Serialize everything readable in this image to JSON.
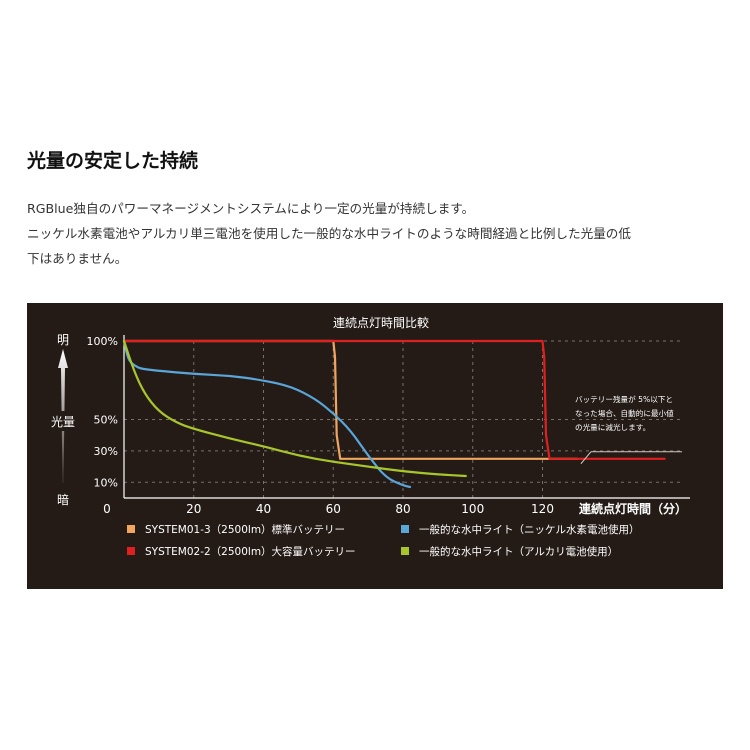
{
  "heading": "光量の安定した持続",
  "description": [
    "RGBlue独自のパワーマネージメントシステムにより一定の光量が持続します。",
    "ニッケル水素電池やアルカリ単三電池を使用した一般的な水中ライトのような時間経過と比例した光量の低",
    "下はありません。"
  ],
  "chart_data": {
    "type": "line",
    "title": "連続点灯時間比較",
    "xlabel": "連続点灯時間（分）",
    "ylabel": "光量",
    "y_top_label": "明",
    "y_bottom_label": "暗",
    "xlim": [
      0,
      160
    ],
    "ylim": [
      0,
      100
    ],
    "x_ticks": [
      0,
      20,
      40,
      60,
      80,
      100,
      120
    ],
    "y_ticks": [
      {
        "value": 100,
        "label": "100%"
      },
      {
        "value": 50,
        "label": "50%"
      },
      {
        "value": 30,
        "label": "30%"
      },
      {
        "value": 10,
        "label": "10%"
      }
    ],
    "grid": true,
    "legend_position": "bottom",
    "annotation": {
      "lines": [
        "バッテリー残量が 5%以下と",
        "なった場合、自動的に最小値",
        "の光量に減光します。"
      ],
      "x": 127,
      "y": 25
    },
    "series": [
      {
        "name": "SYSTEM01-3（2500lm）標準バッテリー",
        "color": "#f0a560",
        "x": [
          0,
          60,
          60.5,
          61,
          62,
          130
        ],
        "y": [
          100,
          100,
          90,
          40,
          25,
          25
        ]
      },
      {
        "name": "SYSTEM02-2（2500lm）大容量バッテリー",
        "color": "#e02020",
        "x": [
          0,
          120,
          120.5,
          121,
          122,
          155
        ],
        "y": [
          100,
          100,
          90,
          40,
          25,
          25
        ]
      },
      {
        "name": "一般的な水中ライト（ニッケル水素電池使用）",
        "color": "#5aa6d8",
        "x": [
          0,
          1,
          2,
          4,
          6,
          10,
          20,
          30,
          40,
          48,
          55,
          60,
          65,
          70,
          75,
          80,
          82
        ],
        "y": [
          100,
          90,
          86,
          83,
          82,
          81,
          79,
          78,
          75,
          71,
          63,
          54,
          43,
          27,
          13,
          8,
          7
        ]
      },
      {
        "name": "一般的な水中ライト（アルカリ電池使用）",
        "color": "#a8c62a",
        "x": [
          0,
          3,
          6,
          10,
          15,
          20,
          30,
          40,
          50,
          60,
          70,
          80,
          90,
          98
        ],
        "y": [
          100,
          80,
          66,
          55,
          48,
          44,
          38,
          33,
          27,
          23,
          20,
          17,
          15,
          14
        ]
      }
    ]
  }
}
